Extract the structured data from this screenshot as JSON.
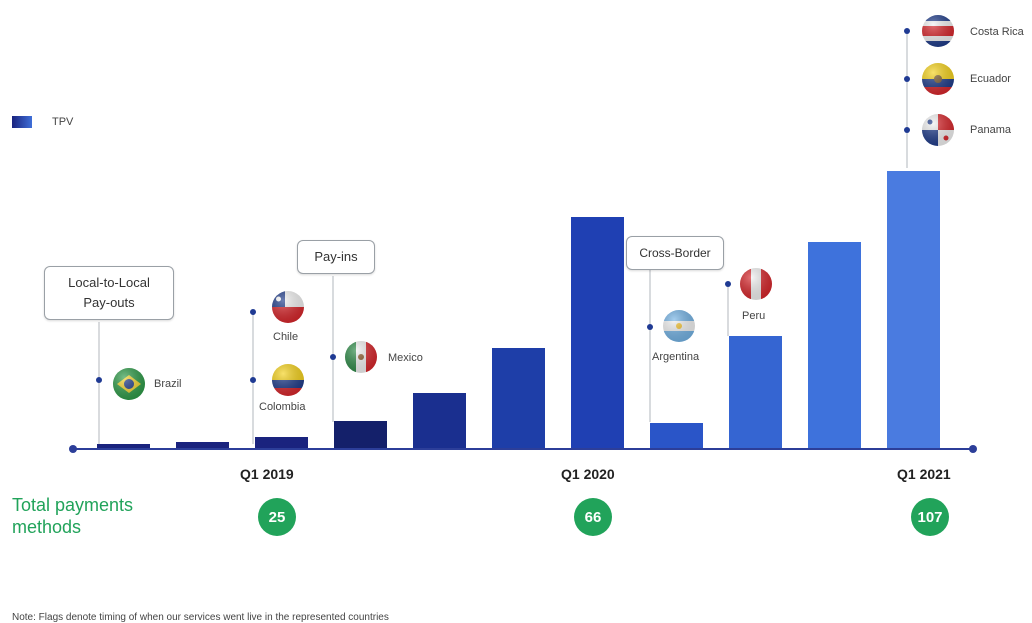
{
  "legend": {
    "tpv_label": "TPV"
  },
  "callouts": {
    "local": [
      "Local-to-Local",
      "Pay-outs"
    ],
    "payins": "Pay-ins",
    "crossborder": "Cross-Border"
  },
  "countries": {
    "brazil": "Brazil",
    "chile": "Chile",
    "colombia": "Colombia",
    "mexico": "Mexico",
    "argentina": "Argentina",
    "peru": "Peru",
    "costa_rica": "Costa Rica",
    "ecuador": "Ecuador",
    "panama": "Panama"
  },
  "axis": {
    "q1_2019": "Q1 2019",
    "q1_2020": "Q1 2020",
    "q1_2021": "Q1 2021"
  },
  "payments": {
    "label_line1": "Total payments",
    "label_line2": "methods",
    "q1_2019": "25",
    "q1_2020": "66",
    "q1_2021": "107"
  },
  "note": "Note: Flags denote timing of when our services went live in the represented countries",
  "colors": {
    "bar_dark": "#1a237e",
    "bar_mid": "#1e40b0",
    "bar_light": "#4a7be0",
    "green": "#21a35a",
    "axis": "#2c3e99"
  },
  "chart_data": {
    "type": "bar",
    "series": [
      {
        "name": "TPV",
        "values": [
          5,
          7,
          12,
          28,
          56,
          101,
          232,
          26,
          113,
          207,
          278
        ]
      }
    ],
    "ylim": [
      0,
      300
    ],
    "x_tick_labels": [
      "Q1 2019",
      "Q1 2020",
      "Q1 2021"
    ],
    "grid": false,
    "legend_position": "top-left"
  }
}
